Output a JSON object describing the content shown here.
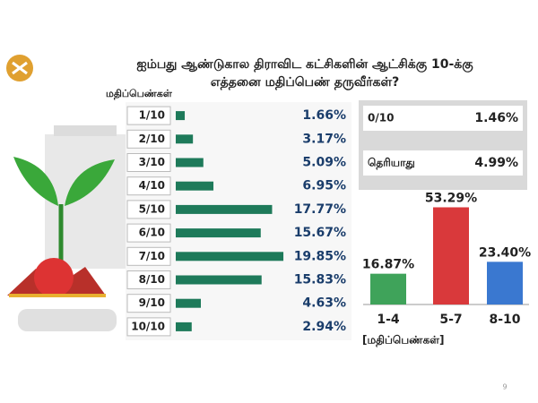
{
  "title": [
    "ஐம்பது ஆண்டுகால திராவிட கட்சிகளின் ஆட்சிக்கு 10-க்கு",
    "எத்தனை மதிப்பெண் தருவீர்கள்?"
  ],
  "chart_data": [
    {
      "type": "hbar",
      "axis_label": "மதிப்பெண்கள்",
      "categories": [
        "1/10",
        "2/10",
        "3/10",
        "4/10",
        "5/10",
        "6/10",
        "7/10",
        "8/10",
        "9/10",
        "10/10"
      ],
      "values": [
        1.66,
        3.17,
        5.09,
        6.95,
        17.77,
        15.67,
        19.85,
        15.83,
        4.63,
        2.94
      ],
      "value_labels": [
        "1.66%",
        "3.17%",
        "5.09%",
        "6.95%",
        "17.77%",
        "15.67%",
        "19.85%",
        "15.83%",
        "4.63%",
        "2.94%"
      ],
      "color": "#1e7a5a",
      "xlim": [
        0,
        21
      ]
    },
    {
      "type": "bar",
      "x_label": "[மதிப்பெண்கள்]",
      "categories": [
        "1-4",
        "5-7",
        "8-10"
      ],
      "values": [
        16.87,
        53.29,
        23.4
      ],
      "value_labels": [
        "16.87%",
        "53.29%",
        "23.40%"
      ],
      "colors": [
        "#3fa35a",
        "#d9393b",
        "#3a78d0"
      ],
      "ylim": [
        0,
        55
      ]
    }
  ],
  "others": {
    "rows": [
      [
        "0/10",
        "1.46%"
      ],
      [
        "தெரியாது",
        "4.99%"
      ]
    ]
  },
  "page_number": "9"
}
